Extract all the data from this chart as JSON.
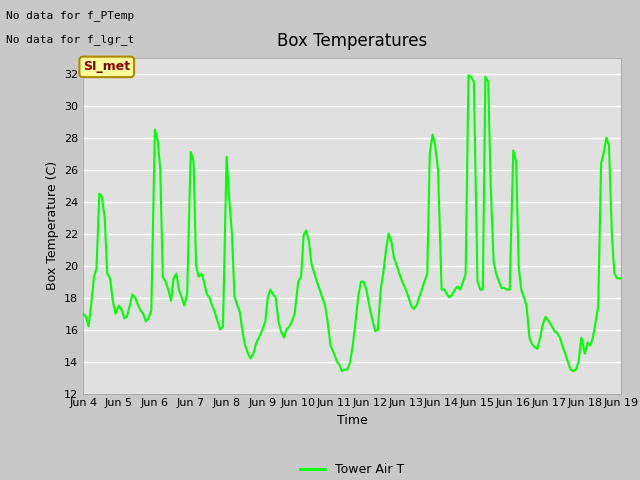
{
  "title": "Box Temperatures",
  "xlabel": "Time",
  "ylabel": "Box Temperature (C)",
  "ylim": [
    12,
    33
  ],
  "yticks": [
    12,
    14,
    16,
    18,
    20,
    22,
    24,
    26,
    28,
    30,
    32
  ],
  "line_color": "#00FF00",
  "line_width": 1.5,
  "fig_bg_color": "#C8C8C8",
  "plot_bg_color": "#E0E0E0",
  "grid_color": "#FFFFFF",
  "annotation_text_1": "No data for f_PTemp",
  "annotation_text_2": "No data for f_lgr_t",
  "box_label": "SI_met",
  "legend_label": "Tower Air T",
  "x_tick_labels": [
    "Jun 4",
    "Jun 5",
    "Jun 6",
    "Jun 7",
    "Jun 8",
    "Jun 9",
    "Jun 10",
    "Jun 11",
    "Jun 12",
    "Jun 13",
    "Jun 14",
    "Jun 15",
    "Jun 16",
    "Jun 17",
    "Jun 18",
    "Jun 19"
  ],
  "x_values": [
    0.0,
    0.08,
    0.15,
    0.22,
    0.3,
    0.37,
    0.45,
    0.52,
    0.6,
    0.67,
    0.75,
    0.82,
    0.9,
    1.0,
    1.08,
    1.15,
    1.22,
    1.3,
    1.37,
    1.45,
    1.52,
    1.6,
    1.67,
    1.75,
    1.82,
    1.9,
    2.0,
    2.08,
    2.15,
    2.22,
    2.3,
    2.37,
    2.45,
    2.52,
    2.6,
    2.67,
    2.75,
    2.82,
    2.9,
    3.0,
    3.08,
    3.15,
    3.22,
    3.3,
    3.37,
    3.45,
    3.52,
    3.6,
    3.67,
    3.75,
    3.82,
    3.9,
    4.0,
    4.08,
    4.15,
    4.22,
    4.3,
    4.37,
    4.45,
    4.52,
    4.6,
    4.67,
    4.75,
    4.82,
    4.9,
    5.0,
    5.08,
    5.15,
    5.22,
    5.3,
    5.37,
    5.45,
    5.52,
    5.6,
    5.67,
    5.75,
    5.82,
    5.9,
    6.0,
    6.08,
    6.15,
    6.22,
    6.3,
    6.37,
    6.45,
    6.52,
    6.6,
    6.67,
    6.75,
    6.82,
    6.9,
    7.0,
    7.08,
    7.15,
    7.22,
    7.3,
    7.37,
    7.45,
    7.52,
    7.6,
    7.67,
    7.75,
    7.82,
    7.9,
    8.0,
    8.08,
    8.15,
    8.22,
    8.3,
    8.37,
    8.45,
    8.52,
    8.6,
    8.67,
    8.75,
    8.82,
    8.9,
    9.0,
    9.08,
    9.15,
    9.22,
    9.3,
    9.37,
    9.45,
    9.52,
    9.6,
    9.67,
    9.75,
    9.82,
    9.9,
    10.0,
    10.08,
    10.15,
    10.22,
    10.3,
    10.37,
    10.45,
    10.52,
    10.6,
    10.67,
    10.75,
    10.82,
    10.9,
    11.0,
    11.08,
    11.15,
    11.22,
    11.3,
    11.37,
    11.45,
    11.52,
    11.6,
    11.67,
    11.75,
    11.82,
    11.9,
    12.0,
    12.08,
    12.15,
    12.22,
    12.3,
    12.37,
    12.45,
    12.52,
    12.6,
    12.67,
    12.75,
    12.82,
    12.9,
    13.0,
    13.08,
    13.15,
    13.22,
    13.3,
    13.37,
    13.45,
    13.52,
    13.6,
    13.67,
    13.75,
    13.82,
    13.9,
    14.0,
    14.08,
    14.15,
    14.22,
    14.3,
    14.37,
    14.45,
    14.52,
    14.6,
    14.67,
    14.75,
    14.82,
    14.9,
    15.0
  ],
  "y_values": [
    17.0,
    16.8,
    16.2,
    17.5,
    19.3,
    19.8,
    24.5,
    24.3,
    23.0,
    19.5,
    19.2,
    17.9,
    17.0,
    17.5,
    17.2,
    16.7,
    16.8,
    17.5,
    18.2,
    18.0,
    17.6,
    17.2,
    17.0,
    16.5,
    16.7,
    17.2,
    28.5,
    27.8,
    26.0,
    19.3,
    19.0,
    18.5,
    17.8,
    19.2,
    19.5,
    18.5,
    18.0,
    17.5,
    18.2,
    27.1,
    26.5,
    20.0,
    19.3,
    19.5,
    19.0,
    18.2,
    18.0,
    17.5,
    17.1,
    16.5,
    16.0,
    16.2,
    26.8,
    24.0,
    22.0,
    18.1,
    17.5,
    17.1,
    15.8,
    15.0,
    14.5,
    14.2,
    14.5,
    15.1,
    15.5,
    16.0,
    16.5,
    18.0,
    18.5,
    18.2,
    18.0,
    16.5,
    15.9,
    15.5,
    16.0,
    16.2,
    16.5,
    17.0,
    19.0,
    19.3,
    21.9,
    22.2,
    21.5,
    20.1,
    19.5,
    19.0,
    18.5,
    18.0,
    17.5,
    16.5,
    15.0,
    14.5,
    14.0,
    13.8,
    13.4,
    13.5,
    13.5,
    14.0,
    15.0,
    16.5,
    18.0,
    19.0,
    19.0,
    18.5,
    17.3,
    16.5,
    15.9,
    16.0,
    18.5,
    19.5,
    21.0,
    22.0,
    21.5,
    20.5,
    20.0,
    19.5,
    19.0,
    18.5,
    18.0,
    17.5,
    17.3,
    17.5,
    18.0,
    18.5,
    19.0,
    19.5,
    27.0,
    28.2,
    27.5,
    26.0,
    18.5,
    18.5,
    18.2,
    18.0,
    18.2,
    18.5,
    18.7,
    18.5,
    19.0,
    19.5,
    31.9,
    31.8,
    31.5,
    19.0,
    18.5,
    18.5,
    31.8,
    31.5,
    25.0,
    20.3,
    19.5,
    19.0,
    18.6,
    18.6,
    18.5,
    18.5,
    27.2,
    26.5,
    20.0,
    18.5,
    18.0,
    17.5,
    15.5,
    15.1,
    14.9,
    14.8,
    15.5,
    16.3,
    16.8,
    16.5,
    16.2,
    15.9,
    15.8,
    15.5,
    15.0,
    14.5,
    14.0,
    13.5,
    13.4,
    13.5,
    14.0,
    15.5,
    14.5,
    15.2,
    15.0,
    15.5,
    16.5,
    17.5,
    26.4,
    27.0,
    28.0,
    27.5,
    22.0,
    19.5,
    19.2,
    19.2
  ],
  "x_tick_positions": [
    0,
    1,
    2,
    3,
    4,
    5,
    6,
    7,
    8,
    9,
    10,
    11,
    12,
    13,
    14,
    15
  ]
}
